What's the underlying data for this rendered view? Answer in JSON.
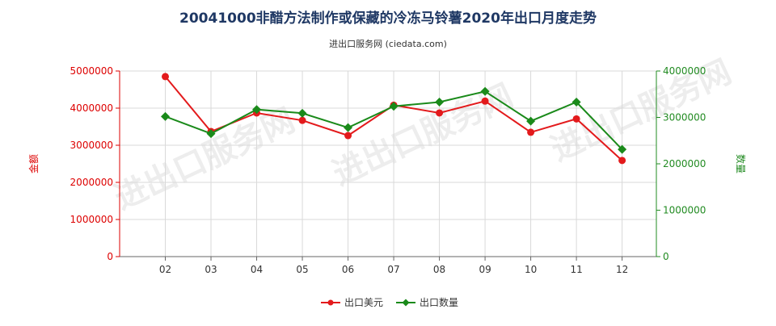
{
  "chart_data": {
    "type": "line",
    "title": "20041000非醋方法制作或保藏的冷冻马铃薯2020年出口月度走势",
    "subtitle": "进出口服务网 (ciedata.com)",
    "watermark": "进出口服务网",
    "categories": [
      "02",
      "03",
      "04",
      "05",
      "06",
      "07",
      "08",
      "09",
      "10",
      "11",
      "12"
    ],
    "left_axis": {
      "label": "金额",
      "ylim": [
        0,
        5000000
      ],
      "ticks": [
        "0",
        "1000000",
        "2000000",
        "3000000",
        "4000000",
        "5000000"
      ],
      "color": "#dd0000"
    },
    "right_axis": {
      "label": "数量",
      "ylim": [
        0,
        4000000
      ],
      "ticks": [
        "0",
        "1000000",
        "2000000",
        "3000000",
        "4000000"
      ],
      "color": "#228b22"
    },
    "series": [
      {
        "name": "出口美元",
        "axis": "left",
        "color": "#e31a1c",
        "marker": "circle",
        "values": [
          4850000,
          3370000,
          3870000,
          3670000,
          3260000,
          4080000,
          3870000,
          4190000,
          3350000,
          3710000,
          2590000
        ]
      },
      {
        "name": "出口数量",
        "axis": "right",
        "color": "#1a8a1a",
        "marker": "diamond",
        "values": [
          3020000,
          2650000,
          3170000,
          3090000,
          2780000,
          3240000,
          3330000,
          3560000,
          2920000,
          3330000,
          2310000
        ]
      }
    ],
    "grid": true,
    "legend_position": "bottom"
  }
}
